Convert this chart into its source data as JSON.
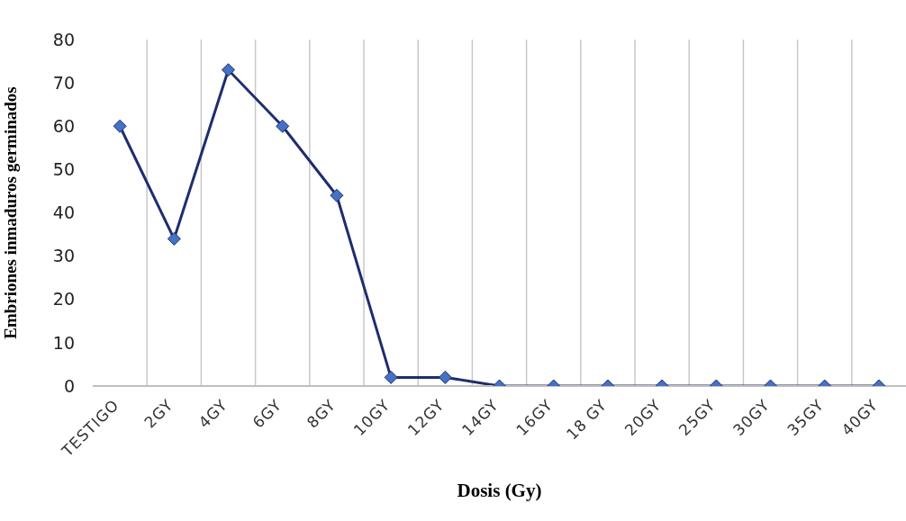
{
  "chart_data": {
    "type": "line",
    "xlabel": "Dosis (Gy)",
    "ylabel": "Embriones inmaduros germinados",
    "categories": [
      "TESTIGO",
      "2GY",
      "4GY",
      "6GY",
      "8GY",
      "10GY",
      "12GY",
      "14GY",
      "16GY",
      "18 GY",
      "20GY",
      "25GY",
      "30GY",
      "35GY",
      "40GY"
    ],
    "series": [
      {
        "color": "#1f2d6e",
        "values": [
          60,
          34,
          73,
          60,
          44,
          2,
          2,
          0,
          0,
          0,
          0,
          0,
          0,
          0,
          0
        ]
      }
    ],
    "ylim": [
      0,
      80
    ],
    "yticks": [
      0,
      10,
      20,
      30,
      40,
      50,
      60,
      70,
      80
    ],
    "grid": "x",
    "marker": "diamond",
    "line_style": "solid"
  }
}
